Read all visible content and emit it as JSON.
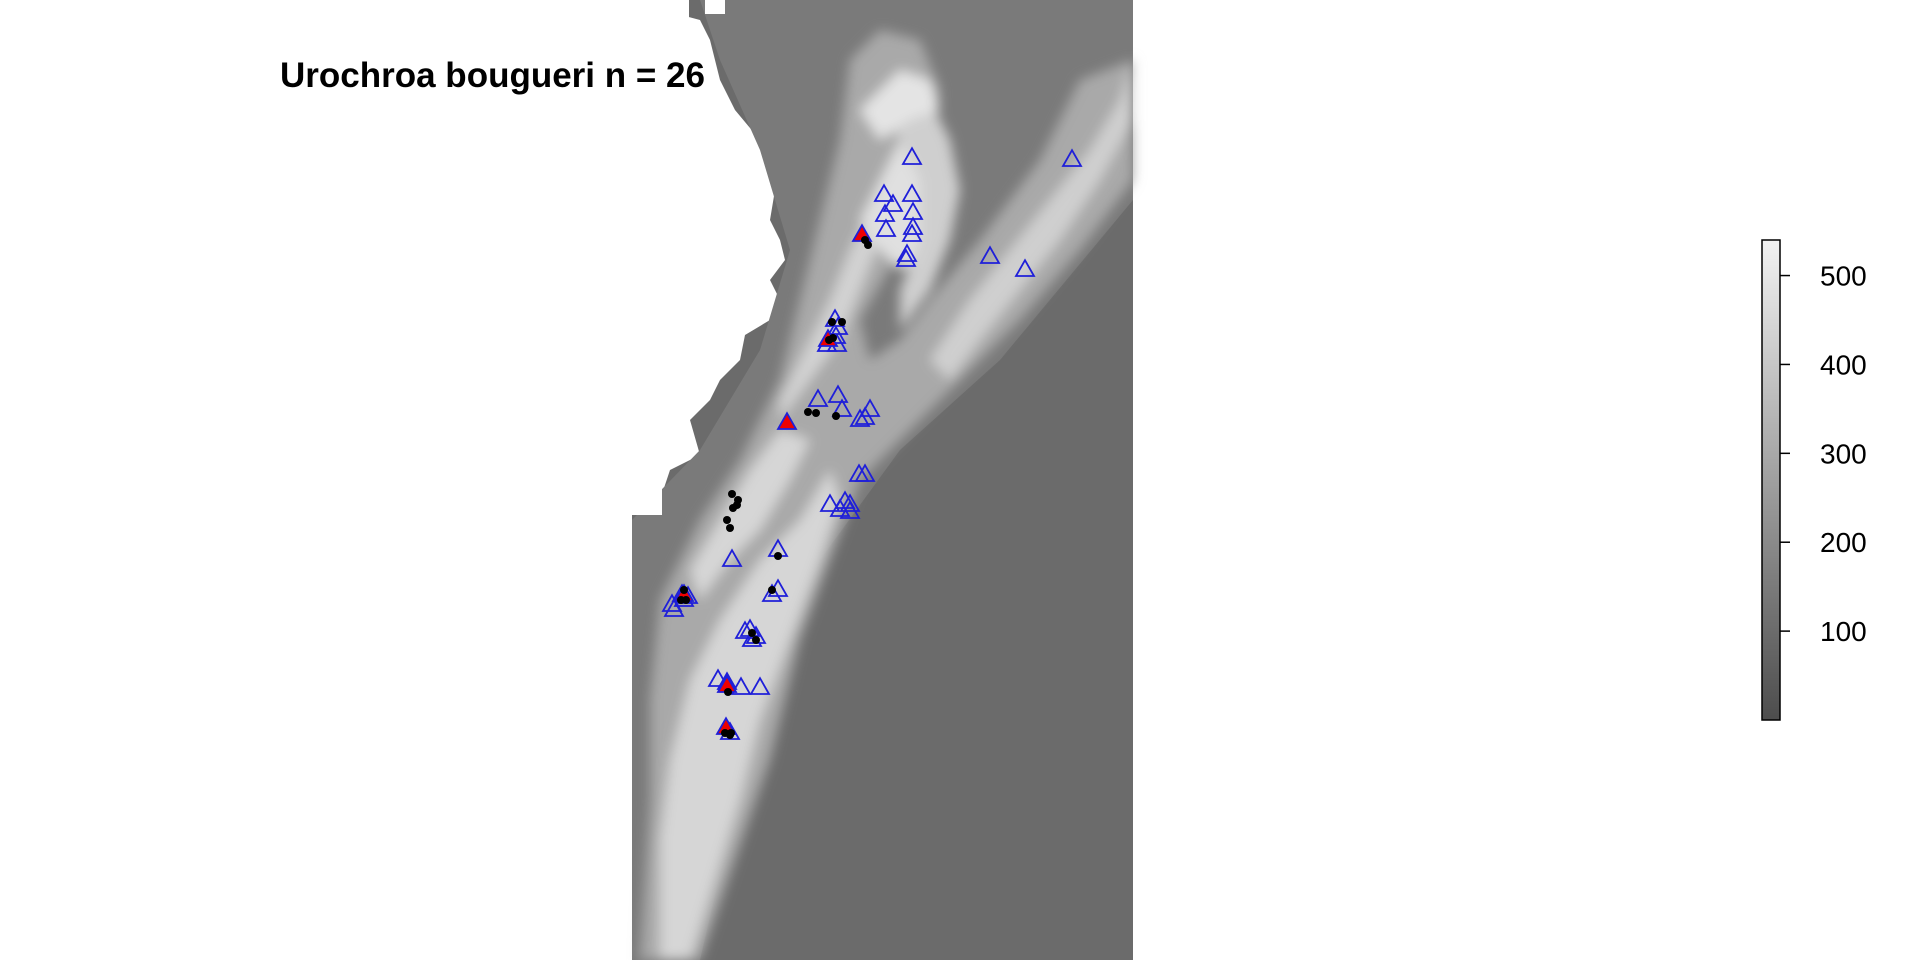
{
  "title": "Urochroa bougueri n = 26",
  "colorbar": {
    "ticks": [
      {
        "value": 500,
        "label": "500"
      },
      {
        "value": 400,
        "label": "400"
      },
      {
        "value": 300,
        "label": "300"
      },
      {
        "value": 200,
        "label": "200"
      },
      {
        "value": 100,
        "label": "100"
      }
    ],
    "min": 0,
    "max": 540,
    "palette": [
      "#4d4d4d",
      "#f2f2f2"
    ]
  },
  "colors": {
    "background_raster": "#6b6b6b",
    "highlands": "#d8d8d8",
    "triangle_stroke": "#1f1fd9",
    "highlight_fill": "#ee0000",
    "point_fill": "#000000"
  },
  "markers": {
    "open_triangle_count": 60,
    "red_triangle_count": 6,
    "black_dot_count": 26
  }
}
